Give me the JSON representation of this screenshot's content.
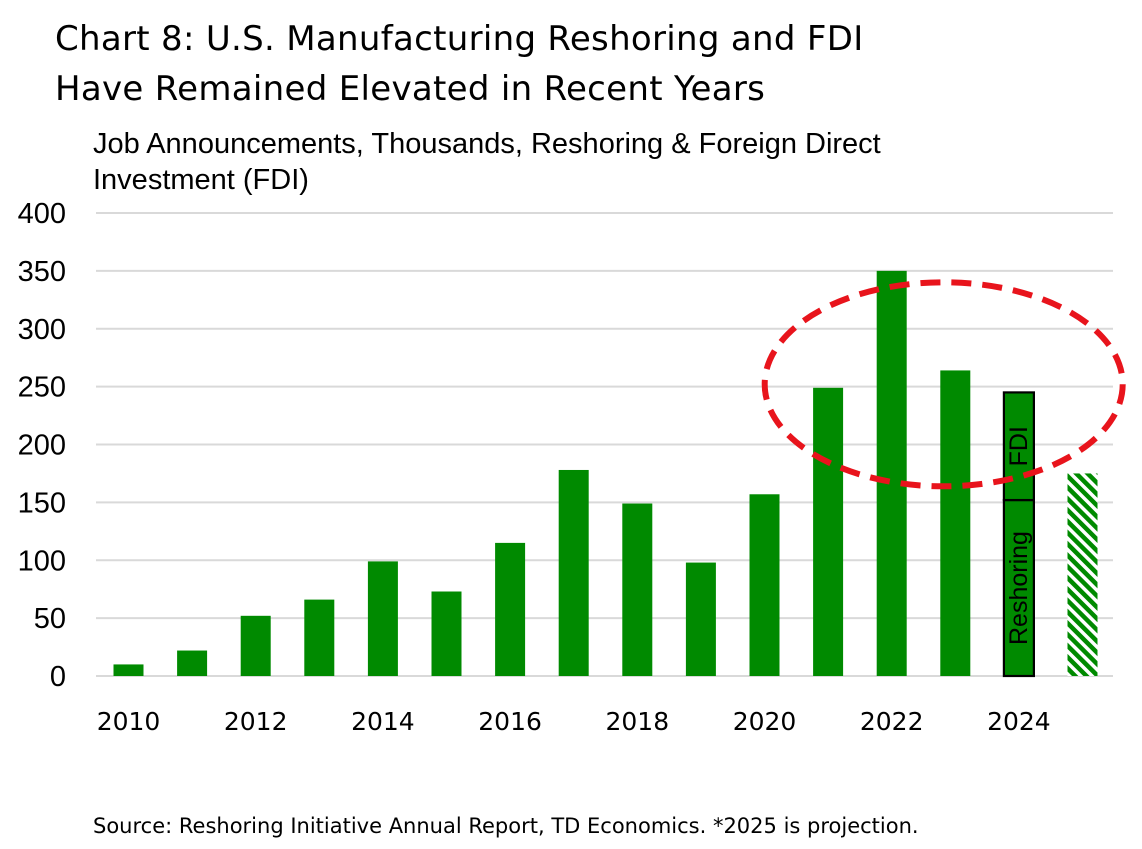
{
  "title": {
    "line1": "Chart 8: U.S. Manufacturing Reshoring and FDI",
    "line2": "Have Remained Elevated in Recent Years"
  },
  "source": "Source: Reshoring Initiative Annual Report, TD Economics. *2025 is projection.",
  "chart_data": {
    "type": "bar",
    "title": "Chart 8: U.S. Manufacturing Reshoring and FDI Have Remained Elevated in Recent Years",
    "ylabel": "Job Announcements, Thousands, Reshoring & Foreign Direct Investment (FDI)",
    "xlabel": "",
    "ylim": [
      0,
      400
    ],
    "yticks": [
      0,
      50,
      100,
      150,
      200,
      250,
      300,
      350,
      400
    ],
    "xtick_labels": [
      "2010",
      "2012",
      "2014",
      "2016",
      "2018",
      "2020",
      "2022",
      "2024"
    ],
    "grid": true,
    "categories": [
      "2010",
      "2011",
      "2012",
      "2013",
      "2014",
      "2015",
      "2016",
      "2017",
      "2018",
      "2019",
      "2020",
      "2021",
      "2022",
      "2023",
      "2024",
      "2025"
    ],
    "values": [
      10,
      22,
      52,
      66,
      99,
      73,
      115,
      178,
      149,
      98,
      157,
      249,
      350,
      264,
      245,
      175
    ],
    "stacked_bar": {
      "category": "2024",
      "segments": [
        {
          "name": "Reshoring",
          "value": 152
        },
        {
          "name": "FDI",
          "value": 93
        }
      ]
    },
    "projection": {
      "category": "2025",
      "value": 175,
      "style": "hatched"
    },
    "annotation": {
      "type": "dashed-ellipse",
      "highlights": [
        "2021",
        "2022",
        "2023"
      ]
    },
    "colors": {
      "bar": "#008a00",
      "grid": "#d9d9d9",
      "annotation": "#e8141c",
      "outline": "#000000"
    }
  }
}
